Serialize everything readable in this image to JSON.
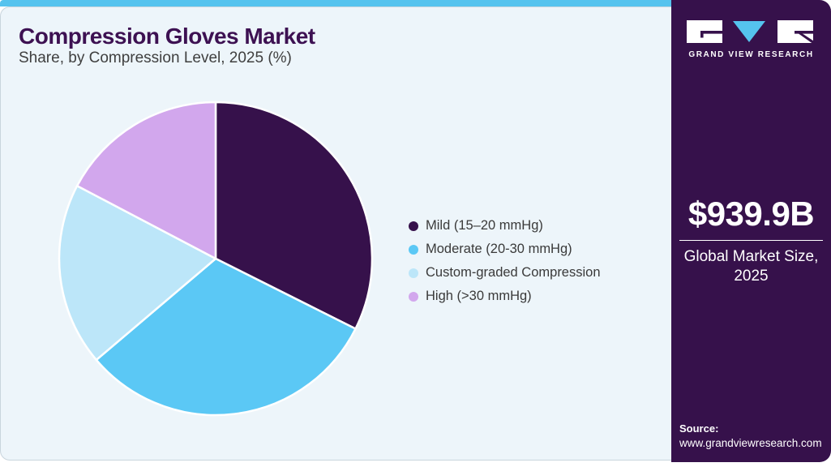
{
  "page": {
    "title": "Compression Gloves Market",
    "subtitle": "Share, by Compression Level, 2025 (%)"
  },
  "chart_data": {
    "type": "pie",
    "title": "Compression Gloves Market Share, by Compression Level, 2025 (%)",
    "categories": [
      "Mild (15–20 mmHg)",
      "Moderate (20-30 mmHg)",
      "Custom-graded Compression",
      "High (>30 mmHg)"
    ],
    "values": [
      32.4,
      31.4,
      18.9,
      17.3
    ],
    "unit": "%",
    "colors": [
      "#36114B",
      "#5BC8F5",
      "#BCE6F9",
      "#D2A7ED"
    ],
    "start_angle_deg": 0,
    "direction": "clockwise",
    "legend_position": "right",
    "slice_separator_color": "#FFFFFF"
  },
  "sidebar": {
    "logo_text": "GRAND VIEW RESEARCH",
    "market_size_value": "$939.9B",
    "market_size_label": "Global Market Size, 2025",
    "source_label": "Source:",
    "source_url": "www.grandviewresearch.com"
  },
  "theme_colors": {
    "top_strip": "#55C3EE",
    "card_background": "#EDF5FA",
    "sidebar_background": "#36114B",
    "title_color": "#3D1152",
    "body_text": "#3A3A3A",
    "logo_triangle": "#55C3EE"
  }
}
